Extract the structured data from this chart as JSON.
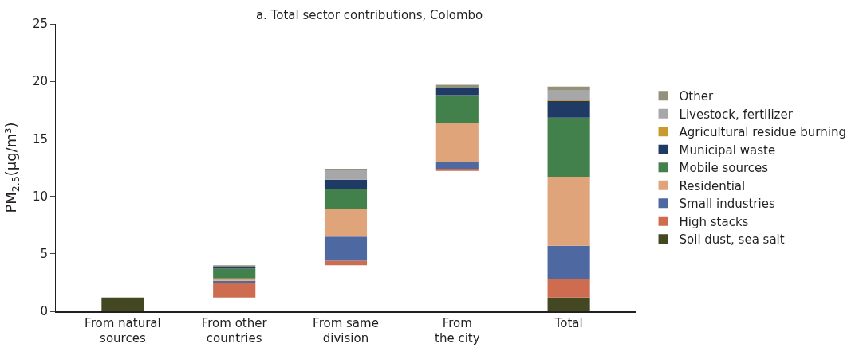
{
  "chart_data": {
    "type": "bar",
    "title": "a. Total sector contributions, Colombo",
    "ylabel": "PM$_{2.5}$(μg/m³)",
    "categories": [
      "From natural\nsources",
      "From other\ncountries",
      "From same\ndivision",
      "From\nthe city",
      "Total"
    ],
    "ylim": [
      0,
      25
    ],
    "yticks": [
      0,
      5,
      10,
      15,
      20,
      25
    ],
    "grid": false,
    "legend": "right",
    "series": [
      {
        "name": "Soil dust, sea salt",
        "color": "#434823",
        "values": [
          1.2,
          null,
          null,
          null,
          1.2
        ],
        "base": [
          0,
          null,
          null,
          null,
          0
        ]
      },
      {
        "name": "High stacks",
        "color": "#cd6c4e",
        "values": [
          null,
          1.3,
          0.4,
          0.2,
          1.6
        ],
        "base": [
          null,
          1.2,
          4.0,
          12.2,
          1.2
        ]
      },
      {
        "name": "Small industries",
        "color": "#4e68a2",
        "values": [
          null,
          0.15,
          2.1,
          0.6,
          2.9
        ],
        "base": [
          null,
          2.5,
          4.4,
          12.4,
          2.8
        ]
      },
      {
        "name": "Residential",
        "color": "#dfa47a",
        "values": [
          null,
          0.2,
          2.4,
          3.4,
          6.0
        ],
        "base": [
          null,
          2.65,
          6.5,
          13.0,
          5.7
        ]
      },
      {
        "name": "Mobile sources",
        "color": "#42804c",
        "values": [
          null,
          0.85,
          1.75,
          2.4,
          5.15
        ],
        "base": [
          null,
          2.85,
          8.9,
          16.4,
          11.7
        ]
      },
      {
        "name": "Municipal waste",
        "color": "#203a66",
        "values": [
          null,
          0.15,
          0.8,
          0.65,
          1.45
        ],
        "base": [
          null,
          3.7,
          10.65,
          18.8,
          16.85
        ]
      },
      {
        "name": "Agricultural residue burning",
        "color": "#c99a2e",
        "values": [
          null,
          null,
          null,
          null,
          0.05
        ],
        "base": [
          null,
          null,
          null,
          null,
          18.3
        ]
      },
      {
        "name": "Livestock, fertilizer",
        "color": "#a7a6a8",
        "values": [
          null,
          null,
          0.8,
          null,
          0.85
        ],
        "base": [
          null,
          null,
          11.45,
          null,
          18.35
        ]
      },
      {
        "name": "Other",
        "color": "#94917a",
        "values": [
          null,
          0.15,
          0.15,
          0.25,
          0.35
        ],
        "base": [
          null,
          3.85,
          12.25,
          19.45,
          19.2
        ]
      }
    ]
  }
}
